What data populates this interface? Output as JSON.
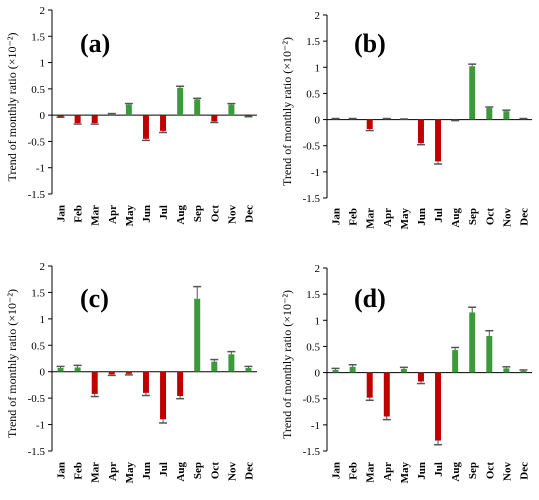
{
  "chart_data": [
    {
      "type": "bar",
      "panel_label": "(a)",
      "ylabel": "Trend of monthly ratio (×10⁻²)",
      "ylim": [
        -1.5,
        2
      ],
      "yticks": [
        "2",
        "1.5",
        "1",
        "0.5",
        "0",
        "-0.5",
        "-1",
        "-1.5"
      ],
      "categories": [
        "Jan",
        "Feb",
        "Mar",
        "Apr",
        "May",
        "Jun",
        "Jul",
        "Aug",
        "Sep",
        "Oct",
        "Nov",
        "Dec"
      ],
      "values": [
        -0.03,
        -0.15,
        -0.15,
        0.02,
        0.2,
        -0.45,
        -0.3,
        0.52,
        0.3,
        -0.12,
        0.2,
        -0.02
      ],
      "errors": [
        0.01,
        0.02,
        0.02,
        0.01,
        0.02,
        0.03,
        0.03,
        0.03,
        0.02,
        0.02,
        0.02,
        0.01
      ],
      "grid": false
    },
    {
      "type": "bar",
      "panel_label": "(b)",
      "ylabel": "Trend of monthly ratio (×10⁻²)",
      "ylim": [
        -1.5,
        2
      ],
      "yticks": [
        "2",
        "1.5",
        "1",
        "0.5",
        "0",
        "-0.5",
        "-1",
        "-1.5"
      ],
      "categories": [
        "Jan",
        "Feb",
        "Mar",
        "Apr",
        "May",
        "Jun",
        "Jul",
        "Aug",
        "Sep",
        "Oct",
        "Nov",
        "Dec"
      ],
      "values": [
        0.01,
        0.01,
        -0.18,
        0.01,
        0.0,
        -0.45,
        -0.8,
        -0.01,
        1.02,
        0.22,
        0.16,
        0.01
      ],
      "errors": [
        0.01,
        0.01,
        0.03,
        0.01,
        0.01,
        0.03,
        0.05,
        0.01,
        0.04,
        0.02,
        0.02,
        0.01
      ],
      "grid": false
    },
    {
      "type": "bar",
      "panel_label": "(c)",
      "ylabel": "Trend of monthly ratio (×10⁻²)",
      "ylim": [
        -1.5,
        2
      ],
      "yticks": [
        "2",
        "1.5",
        "1",
        "0.5",
        "0",
        "-0.5",
        "-1",
        "-1.5"
      ],
      "categories": [
        "Jan",
        "Feb",
        "Mar",
        "Apr",
        "May",
        "Jun",
        "Jul",
        "Aug",
        "Sep",
        "Oct",
        "Nov",
        "Dec"
      ],
      "values": [
        0.07,
        0.08,
        -0.42,
        -0.05,
        -0.04,
        -0.4,
        -0.9,
        -0.46,
        1.38,
        0.19,
        0.33,
        0.07
      ],
      "errors": [
        0.03,
        0.04,
        0.05,
        0.02,
        0.02,
        0.05,
        0.07,
        0.05,
        0.23,
        0.04,
        0.05,
        0.03
      ],
      "grid": false
    },
    {
      "type": "bar",
      "panel_label": "(d)",
      "ylabel": "Trend of monthly ratio (×10⁻²)",
      "ylim": [
        -1.5,
        2
      ],
      "yticks": [
        "2",
        "1.5",
        "1",
        "0.5",
        "0",
        "-0.5",
        "-1",
        "-1.5"
      ],
      "categories": [
        "Jan",
        "Feb",
        "Mar",
        "Apr",
        "May",
        "Jun",
        "Jul",
        "Aug",
        "Sep",
        "Oct",
        "Nov",
        "Dec"
      ],
      "values": [
        0.05,
        0.11,
        -0.48,
        -0.84,
        0.07,
        -0.17,
        -1.3,
        0.43,
        1.15,
        0.7,
        0.08,
        0.03
      ],
      "errors": [
        0.03,
        0.04,
        0.05,
        0.06,
        0.03,
        0.04,
        0.08,
        0.05,
        0.1,
        0.1,
        0.03,
        0.02
      ],
      "grid": false
    }
  ],
  "colors": {
    "positive": "#3b9a3b",
    "negative": "#c00000",
    "axis": "#000000",
    "error": "#555555"
  }
}
